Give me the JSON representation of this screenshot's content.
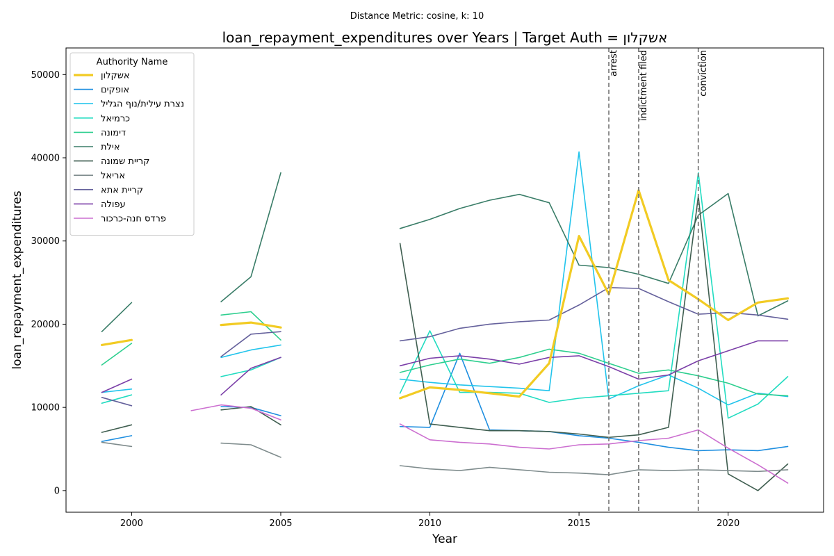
{
  "chart_data": {
    "type": "line",
    "suptitle": "Distance Metric: cosine, k: 10",
    "title": "loan_repayment_expenditures over Years | Target Auth = אשקלון",
    "xlabel": "Year",
    "ylabel": "loan_repayment_expenditures",
    "xlim": [
      1997.8,
      2023.2
    ],
    "ylim": [
      -2600,
      53200
    ],
    "xticks": [
      2000,
      2005,
      2010,
      2015,
      2020
    ],
    "yticks": [
      0,
      10000,
      20000,
      30000,
      40000,
      50000
    ],
    "xtick_labels": [
      "2000",
      "2005",
      "2010",
      "2015",
      "2020"
    ],
    "ytick_labels": [
      "0",
      "10000",
      "20000",
      "30000",
      "40000",
      "50000"
    ],
    "grid": false,
    "legend": {
      "title": "Authority Name",
      "placement": "top-left"
    },
    "events": [
      {
        "x": 2016,
        "label": "arrest"
      },
      {
        "x": 2017,
        "label": "indictment filed"
      },
      {
        "x": 2019,
        "label": "conviction"
      }
    ],
    "x": [
      1999,
      2000,
      2001,
      2002,
      2003,
      2004,
      2005,
      2006,
      2007,
      2008,
      2009,
      2010,
      2011,
      2012,
      2013,
      2014,
      2015,
      2016,
      2017,
      2018,
      2019,
      2020,
      2021,
      2022
    ],
    "series": [
      {
        "name": "אשקלון",
        "color": "#f2cb23",
        "width": 3.2,
        "target": true,
        "values": [
          17500,
          18100,
          null,
          null,
          19900,
          20200,
          19600,
          null,
          null,
          null,
          11100,
          12400,
          12100,
          11700,
          11300,
          15300,
          30600,
          23600,
          36100,
          25300,
          23000,
          20500,
          22600,
          23100
        ]
      },
      {
        "name": "אופקים",
        "color": "#1f8fe0",
        "width": 1.6,
        "values": [
          5900,
          6600,
          null,
          null,
          10100,
          10000,
          9000,
          null,
          null,
          null,
          7700,
          7600,
          16500,
          7300,
          7200,
          7100,
          6600,
          6300,
          5800,
          5200,
          4800,
          4900,
          4800,
          5300
        ]
      },
      {
        "name": "נצרת עילית/נוף הגליל",
        "color": "#22c4ec",
        "width": 1.6,
        "values": [
          11800,
          12200,
          null,
          null,
          16000,
          16900,
          17500,
          null,
          null,
          null,
          13400,
          13000,
          12700,
          12500,
          12300,
          12000,
          40700,
          11000,
          12600,
          13900,
          12300,
          10300,
          11700,
          11300
        ]
      },
      {
        "name": "כרמיאל",
        "color": "#22dcc1",
        "width": 1.6,
        "values": [
          10500,
          11500,
          null,
          null,
          13700,
          14500,
          16000,
          null,
          null,
          null,
          11700,
          19200,
          11800,
          11800,
          11700,
          10600,
          11100,
          11400,
          11700,
          12000,
          38200,
          8700,
          10400,
          13700
        ]
      },
      {
        "name": "דימונה",
        "color": "#2ecf8f",
        "width": 1.6,
        "values": [
          15100,
          17700,
          null,
          null,
          21100,
          21500,
          18100,
          null,
          null,
          null,
          14200,
          15100,
          15800,
          15300,
          16000,
          17000,
          16500,
          15300,
          14100,
          14500,
          13800,
          12900,
          11600,
          11400
        ]
      },
      {
        "name": "אילת",
        "color": "#3a7d68",
        "width": 1.6,
        "values": [
          19100,
          22600,
          null,
          null,
          22700,
          25700,
          38200,
          null,
          null,
          null,
          31500,
          32600,
          33900,
          34900,
          35600,
          34600,
          27100,
          26800,
          26000,
          24900,
          33100,
          35700,
          21000,
          22800
        ]
      },
      {
        "name": "קריית שמונה",
        "color": "#3f5e50",
        "width": 1.6,
        "values": [
          7000,
          7900,
          null,
          null,
          9700,
          10100,
          7900,
          null,
          null,
          null,
          29700,
          8000,
          7600,
          7200,
          7200,
          7100,
          6800,
          6400,
          6700,
          7600,
          35400,
          2000,
          0,
          3200
        ]
      },
      {
        "name": "אריאל",
        "color": "#7f8c8d",
        "width": 1.6,
        "values": [
          5800,
          5300,
          null,
          null,
          5700,
          5500,
          4000,
          null,
          null,
          null,
          3000,
          2600,
          2400,
          2800,
          2500,
          2200,
          2100,
          1900,
          2500,
          2400,
          2500,
          2400,
          2300,
          2500
        ]
      },
      {
        "name": "קריית אתא",
        "color": "#65619c",
        "width": 1.6,
        "values": [
          11200,
          10200,
          null,
          null,
          16100,
          18800,
          19100,
          null,
          null,
          null,
          18000,
          18500,
          19500,
          20000,
          20300,
          20500,
          22300,
          24400,
          24300,
          22700,
          21200,
          21400,
          21100,
          20600
        ]
      },
      {
        "name": "עפולה",
        "color": "#7b3fa8",
        "width": 1.6,
        "values": [
          11800,
          13400,
          null,
          null,
          11500,
          14700,
          16000,
          null,
          null,
          null,
          15000,
          15900,
          16200,
          15800,
          15200,
          16000,
          16200,
          14900,
          13400,
          13900,
          15600,
          16800,
          18000,
          18000
        ]
      },
      {
        "name": "פרדס חנה-כרכור",
        "color": "#cc6fd0",
        "width": 1.6,
        "values": [
          null,
          null,
          null,
          9600,
          10300,
          9900,
          8500,
          null,
          null,
          null,
          8000,
          6100,
          5800,
          5600,
          5200,
          5000,
          5500,
          5600,
          6000,
          6300,
          7300,
          5100,
          3100,
          900
        ]
      }
    ]
  }
}
